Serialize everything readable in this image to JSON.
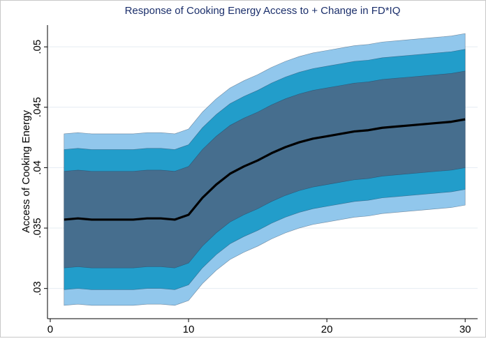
{
  "chart_data": {
    "type": "fan",
    "title": "Response of Cooking Energy Access to + Change in FD*IQ",
    "ylabel": "Access of Cooking Energy",
    "x": [
      1,
      2,
      3,
      4,
      5,
      6,
      7,
      8,
      9,
      10,
      11,
      12,
      13,
      14,
      15,
      16,
      17,
      18,
      19,
      20,
      21,
      22,
      23,
      24,
      25,
      26,
      27,
      28,
      29,
      30
    ],
    "xlim": [
      -0.2,
      30.9
    ],
    "xticks": [
      0,
      10,
      20,
      30
    ],
    "ylim": [
      0.0275,
      0.0518
    ],
    "yticks": [
      {
        "value": 0.03,
        "label": ".03"
      },
      {
        "value": 0.035,
        "label": ".035"
      },
      {
        "value": 0.04,
        "label": ".04"
      },
      {
        "value": 0.045,
        "label": ".045"
      },
      {
        "value": 0.05,
        "label": ".05"
      }
    ],
    "grid": true,
    "bands": [
      {
        "color": "#91c7ec",
        "upper": [
          0.0428,
          0.0429,
          0.0428,
          0.0428,
          0.0428,
          0.0428,
          0.0429,
          0.0429,
          0.0428,
          0.0432,
          0.0446,
          0.0457,
          0.0466,
          0.0472,
          0.0477,
          0.0483,
          0.0488,
          0.0492,
          0.0495,
          0.0497,
          0.0499,
          0.0501,
          0.0502,
          0.0504,
          0.0505,
          0.0506,
          0.0507,
          0.0508,
          0.0509,
          0.0511
        ],
        "lower": [
          0.0286,
          0.0287,
          0.0286,
          0.0286,
          0.0286,
          0.0286,
          0.0287,
          0.0287,
          0.0286,
          0.029,
          0.0304,
          0.0315,
          0.0324,
          0.033,
          0.0335,
          0.0341,
          0.0346,
          0.035,
          0.0353,
          0.0355,
          0.0357,
          0.0359,
          0.036,
          0.0362,
          0.0363,
          0.0364,
          0.0365,
          0.0366,
          0.0367,
          0.0369
        ]
      },
      {
        "color": "#229dca",
        "upper": [
          0.0415,
          0.0416,
          0.0415,
          0.0415,
          0.0415,
          0.0415,
          0.0416,
          0.0416,
          0.0415,
          0.0419,
          0.0433,
          0.0444,
          0.0453,
          0.0459,
          0.0464,
          0.047,
          0.0475,
          0.0479,
          0.0482,
          0.0484,
          0.0486,
          0.0488,
          0.0489,
          0.0491,
          0.0492,
          0.0493,
          0.0494,
          0.0495,
          0.0496,
          0.0498
        ],
        "lower": [
          0.0299,
          0.03,
          0.0299,
          0.0299,
          0.0299,
          0.0299,
          0.03,
          0.03,
          0.0299,
          0.0303,
          0.0317,
          0.0328,
          0.0337,
          0.0343,
          0.0348,
          0.0354,
          0.0359,
          0.0363,
          0.0366,
          0.0368,
          0.037,
          0.0372,
          0.0373,
          0.0375,
          0.0376,
          0.0377,
          0.0378,
          0.0379,
          0.038,
          0.0382
        ]
      },
      {
        "color": "#466e8e",
        "upper": [
          0.0397,
          0.0398,
          0.0397,
          0.0397,
          0.0397,
          0.0397,
          0.0398,
          0.0398,
          0.0397,
          0.0401,
          0.0415,
          0.0426,
          0.0435,
          0.0441,
          0.0446,
          0.0452,
          0.0457,
          0.0461,
          0.0464,
          0.0466,
          0.0468,
          0.047,
          0.0471,
          0.0473,
          0.0474,
          0.0475,
          0.0476,
          0.0477,
          0.0478,
          0.048
        ],
        "lower": [
          0.0317,
          0.0318,
          0.0317,
          0.0317,
          0.0317,
          0.0317,
          0.0318,
          0.0318,
          0.0317,
          0.0321,
          0.0335,
          0.0346,
          0.0355,
          0.0361,
          0.0366,
          0.0372,
          0.0377,
          0.0381,
          0.0384,
          0.0386,
          0.0388,
          0.039,
          0.0391,
          0.0393,
          0.0394,
          0.0395,
          0.0396,
          0.0397,
          0.0398,
          0.04
        ]
      }
    ],
    "series": [
      {
        "color": "#000000",
        "values": [
          0.0357,
          0.0358,
          0.0357,
          0.0357,
          0.0357,
          0.0357,
          0.0358,
          0.0358,
          0.0357,
          0.0361,
          0.0375,
          0.0386,
          0.0395,
          0.0401,
          0.0406,
          0.0412,
          0.0417,
          0.0421,
          0.0424,
          0.0426,
          0.0428,
          0.043,
          0.0431,
          0.0433,
          0.0434,
          0.0435,
          0.0436,
          0.0437,
          0.0438,
          0.044
        ]
      }
    ]
  }
}
